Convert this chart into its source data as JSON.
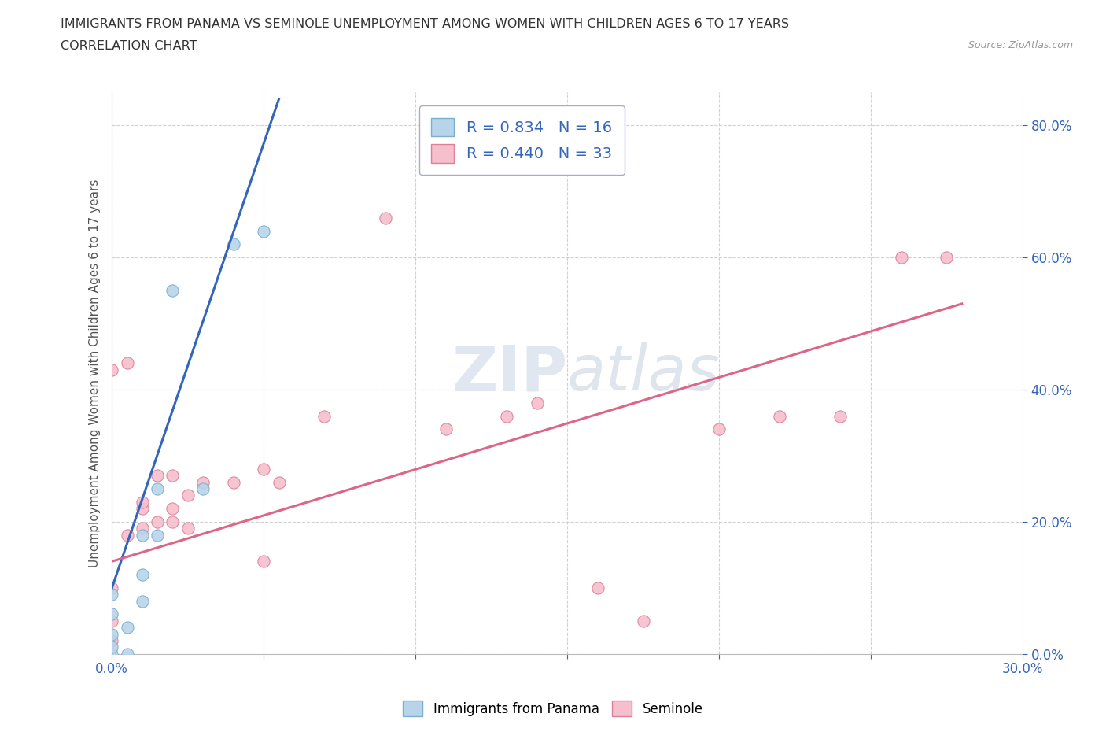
{
  "title_line1": "IMMIGRANTS FROM PANAMA VS SEMINOLE UNEMPLOYMENT AMONG WOMEN WITH CHILDREN AGES 6 TO 17 YEARS",
  "title_line2": "CORRELATION CHART",
  "source_text": "Source: ZipAtlas.com",
  "ylabel": "Unemployment Among Women with Children Ages 6 to 17 years",
  "xlim": [
    0.0,
    0.3
  ],
  "ylim": [
    0.0,
    0.85
  ],
  "x_ticks": [
    0.0,
    0.05,
    0.1,
    0.15,
    0.2,
    0.25,
    0.3
  ],
  "y_ticks": [
    0.0,
    0.2,
    0.4,
    0.6,
    0.8
  ],
  "panama_color": "#b8d4ea",
  "panama_edge": "#7aafce",
  "seminole_color": "#f5bfcc",
  "seminole_edge": "#de8099",
  "blue_line_color": "#3366bb",
  "pink_line_color": "#dd6688",
  "grid_color": "#cccccc",
  "watermark_color": "#ccd8e8",
  "legend_R1": "R = 0.834",
  "legend_N1": "N = 16",
  "legend_R2": "R = 0.440",
  "legend_N2": "N = 33",
  "panama_x": [
    0.0,
    0.0,
    0.0,
    0.0,
    0.0,
    0.005,
    0.005,
    0.01,
    0.01,
    0.01,
    0.015,
    0.015,
    0.02,
    0.03,
    0.04,
    0.05
  ],
  "panama_y": [
    0.0,
    0.01,
    0.03,
    0.06,
    0.09,
    0.0,
    0.04,
    0.08,
    0.12,
    0.18,
    0.18,
    0.25,
    0.55,
    0.25,
    0.62,
    0.64
  ],
  "seminole_x": [
    0.0,
    0.0,
    0.0,
    0.0,
    0.005,
    0.005,
    0.01,
    0.01,
    0.01,
    0.015,
    0.015,
    0.02,
    0.02,
    0.02,
    0.025,
    0.025,
    0.03,
    0.04,
    0.05,
    0.05,
    0.055,
    0.07,
    0.09,
    0.11,
    0.13,
    0.14,
    0.16,
    0.175,
    0.2,
    0.22,
    0.24,
    0.26,
    0.275
  ],
  "seminole_y": [
    0.02,
    0.05,
    0.1,
    0.43,
    0.18,
    0.44,
    0.19,
    0.22,
    0.23,
    0.2,
    0.27,
    0.2,
    0.22,
    0.27,
    0.19,
    0.24,
    0.26,
    0.26,
    0.14,
    0.28,
    0.26,
    0.36,
    0.66,
    0.34,
    0.36,
    0.38,
    0.1,
    0.05,
    0.34,
    0.36,
    0.36,
    0.6,
    0.6
  ],
  "blue_trend_x": [
    0.0,
    0.055
  ],
  "blue_trend_y": [
    0.1,
    0.84
  ],
  "pink_trend_x": [
    0.0,
    0.28
  ],
  "pink_trend_y": [
    0.14,
    0.53
  ]
}
